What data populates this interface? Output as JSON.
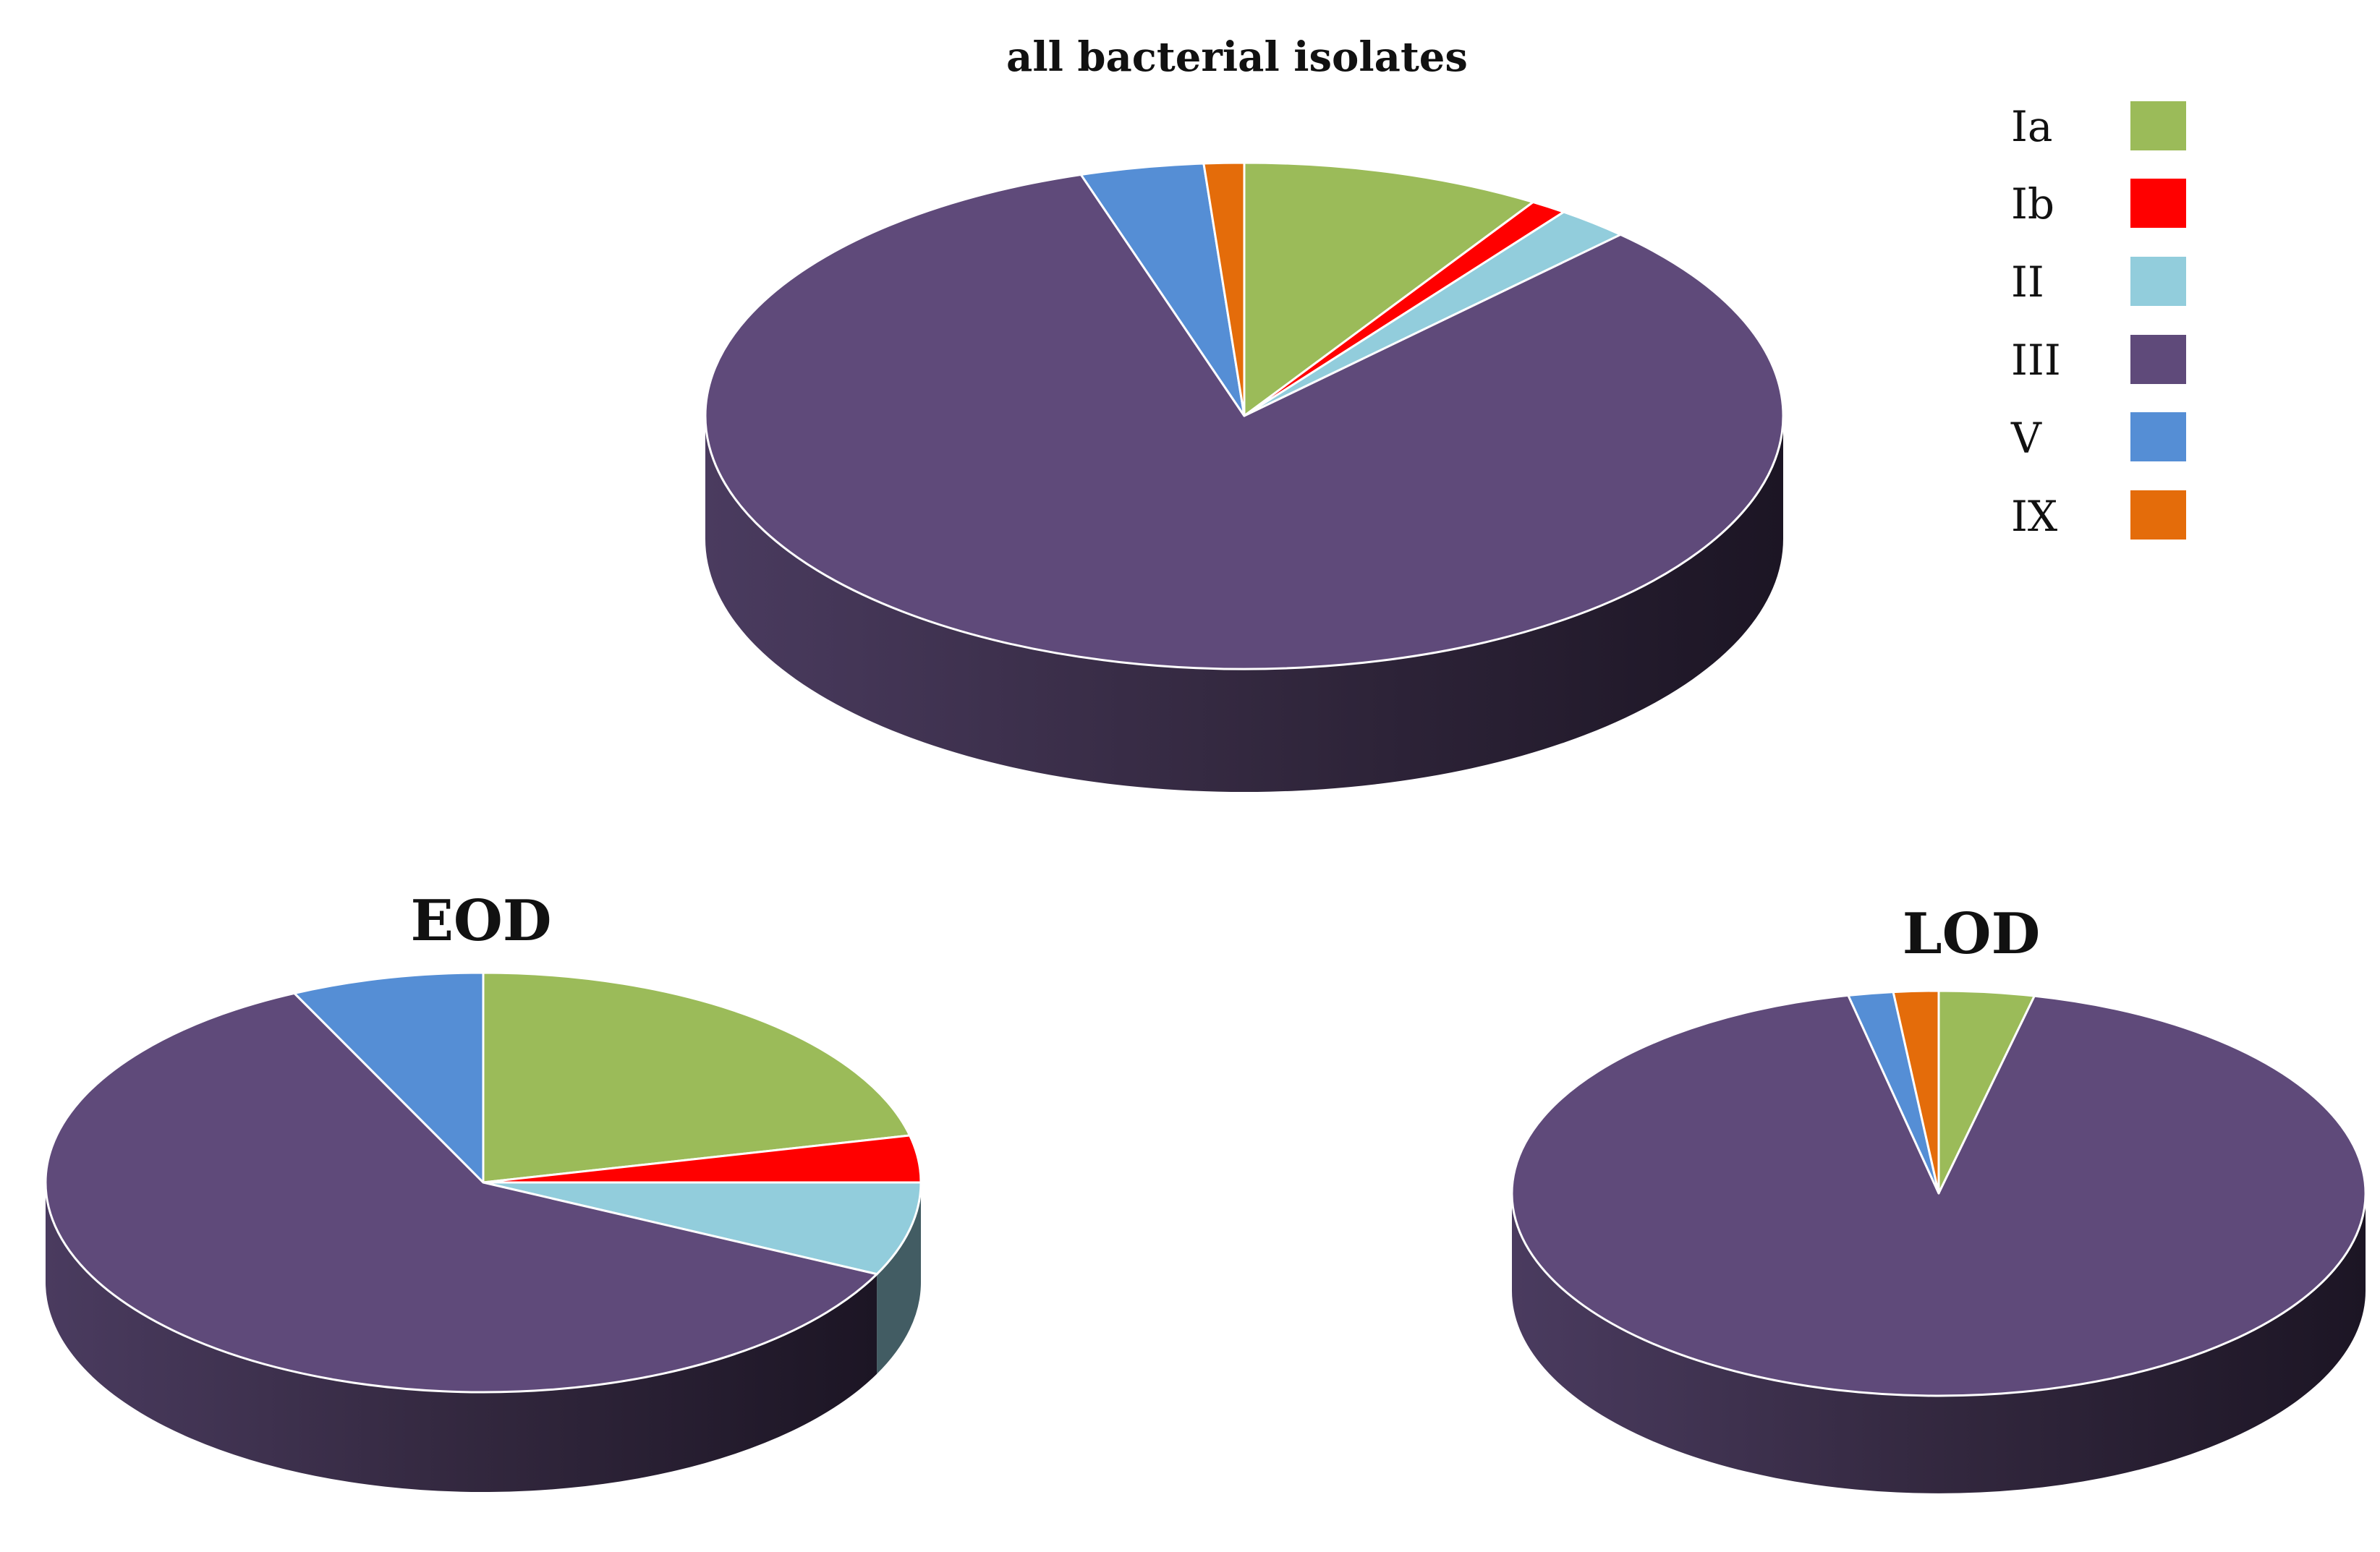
{
  "legend": {
    "placement": "top-right",
    "items": [
      {
        "label": "Ia",
        "color": "#9bbb59"
      },
      {
        "label": "Ib",
        "color": "#ff0000"
      },
      {
        "label": "II",
        "color": "#92cddc"
      },
      {
        "label": "III",
        "color": "#5f4a7a"
      },
      {
        "label": "V",
        "color": "#558ed5"
      },
      {
        "label": "IX",
        "color": "#e46c0a"
      }
    ]
  },
  "chart_data": [
    {
      "type": "pie",
      "title": "all bacterial isolates",
      "labels": [
        "Ia",
        "Ib",
        "II",
        "III",
        "V",
        "IX"
      ],
      "values": [
        9.0,
        1.1,
        2.2,
        82.8,
        3.7,
        1.2
      ],
      "colors": [
        "#9bbb59",
        "#ff0000",
        "#92cddc",
        "#5f4a7a",
        "#558ed5",
        "#e46c0a"
      ]
    },
    {
      "type": "pie",
      "title": "EOD",
      "labels": [
        "Ia",
        "Ib",
        "II",
        "III",
        "V"
      ],
      "values": [
        21.4,
        3.6,
        7.2,
        60.7,
        7.1
      ],
      "colors": [
        "#9bbb59",
        "#ff0000",
        "#92cddc",
        "#5f4a7a",
        "#558ed5"
      ]
    },
    {
      "type": "pie",
      "title": "LOD",
      "labels": [
        "Ia",
        "III",
        "V",
        "IX"
      ],
      "values": [
        3.6,
        93.0,
        1.7,
        1.7
      ],
      "colors": [
        "#9bbb59",
        "#5f4a7a",
        "#558ed5",
        "#e46c0a"
      ]
    }
  ]
}
